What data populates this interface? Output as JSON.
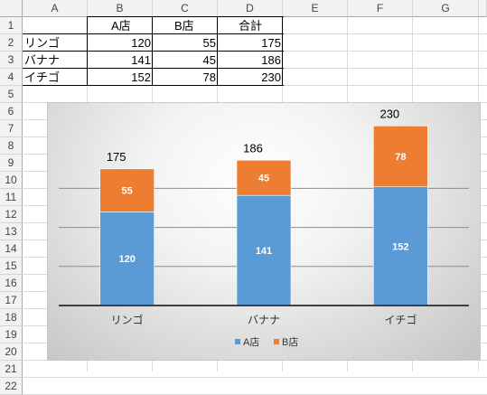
{
  "columns": [
    "A",
    "B",
    "C",
    "D",
    "E",
    "F",
    "G"
  ],
  "rows": [
    "1",
    "2",
    "3",
    "4",
    "5",
    "6",
    "7",
    "8",
    "9",
    "10",
    "11",
    "12",
    "13",
    "14",
    "15",
    "16",
    "17",
    "18",
    "19",
    "20",
    "21",
    "22"
  ],
  "table": {
    "headers": [
      "",
      "A店",
      "B店",
      "合計"
    ],
    "rows": [
      [
        "リンゴ",
        "120",
        "55",
        "175"
      ],
      [
        "バナナ",
        "141",
        "45",
        "186"
      ],
      [
        "イチゴ",
        "152",
        "78",
        "230"
      ]
    ]
  },
  "colors": {
    "series_a": "#5b9bd5",
    "series_b": "#ed7d31",
    "grid": "#8c8c8c",
    "axis": "#404040"
  },
  "chart_data": {
    "type": "bar",
    "stacked": true,
    "categories": [
      "リンゴ",
      "バナナ",
      "イチゴ"
    ],
    "series": [
      {
        "name": "A店",
        "values": [
          120,
          141,
          152
        ],
        "color": "#5b9bd5"
      },
      {
        "name": "B店",
        "values": [
          55,
          45,
          78
        ],
        "color": "#ed7d31"
      }
    ],
    "totals": [
      175,
      186,
      230
    ],
    "ylim": [
      0,
      250
    ],
    "gridlines": [
      50,
      100,
      150
    ],
    "legend": "bottom",
    "title": "",
    "xlabel": "",
    "ylabel": ""
  }
}
